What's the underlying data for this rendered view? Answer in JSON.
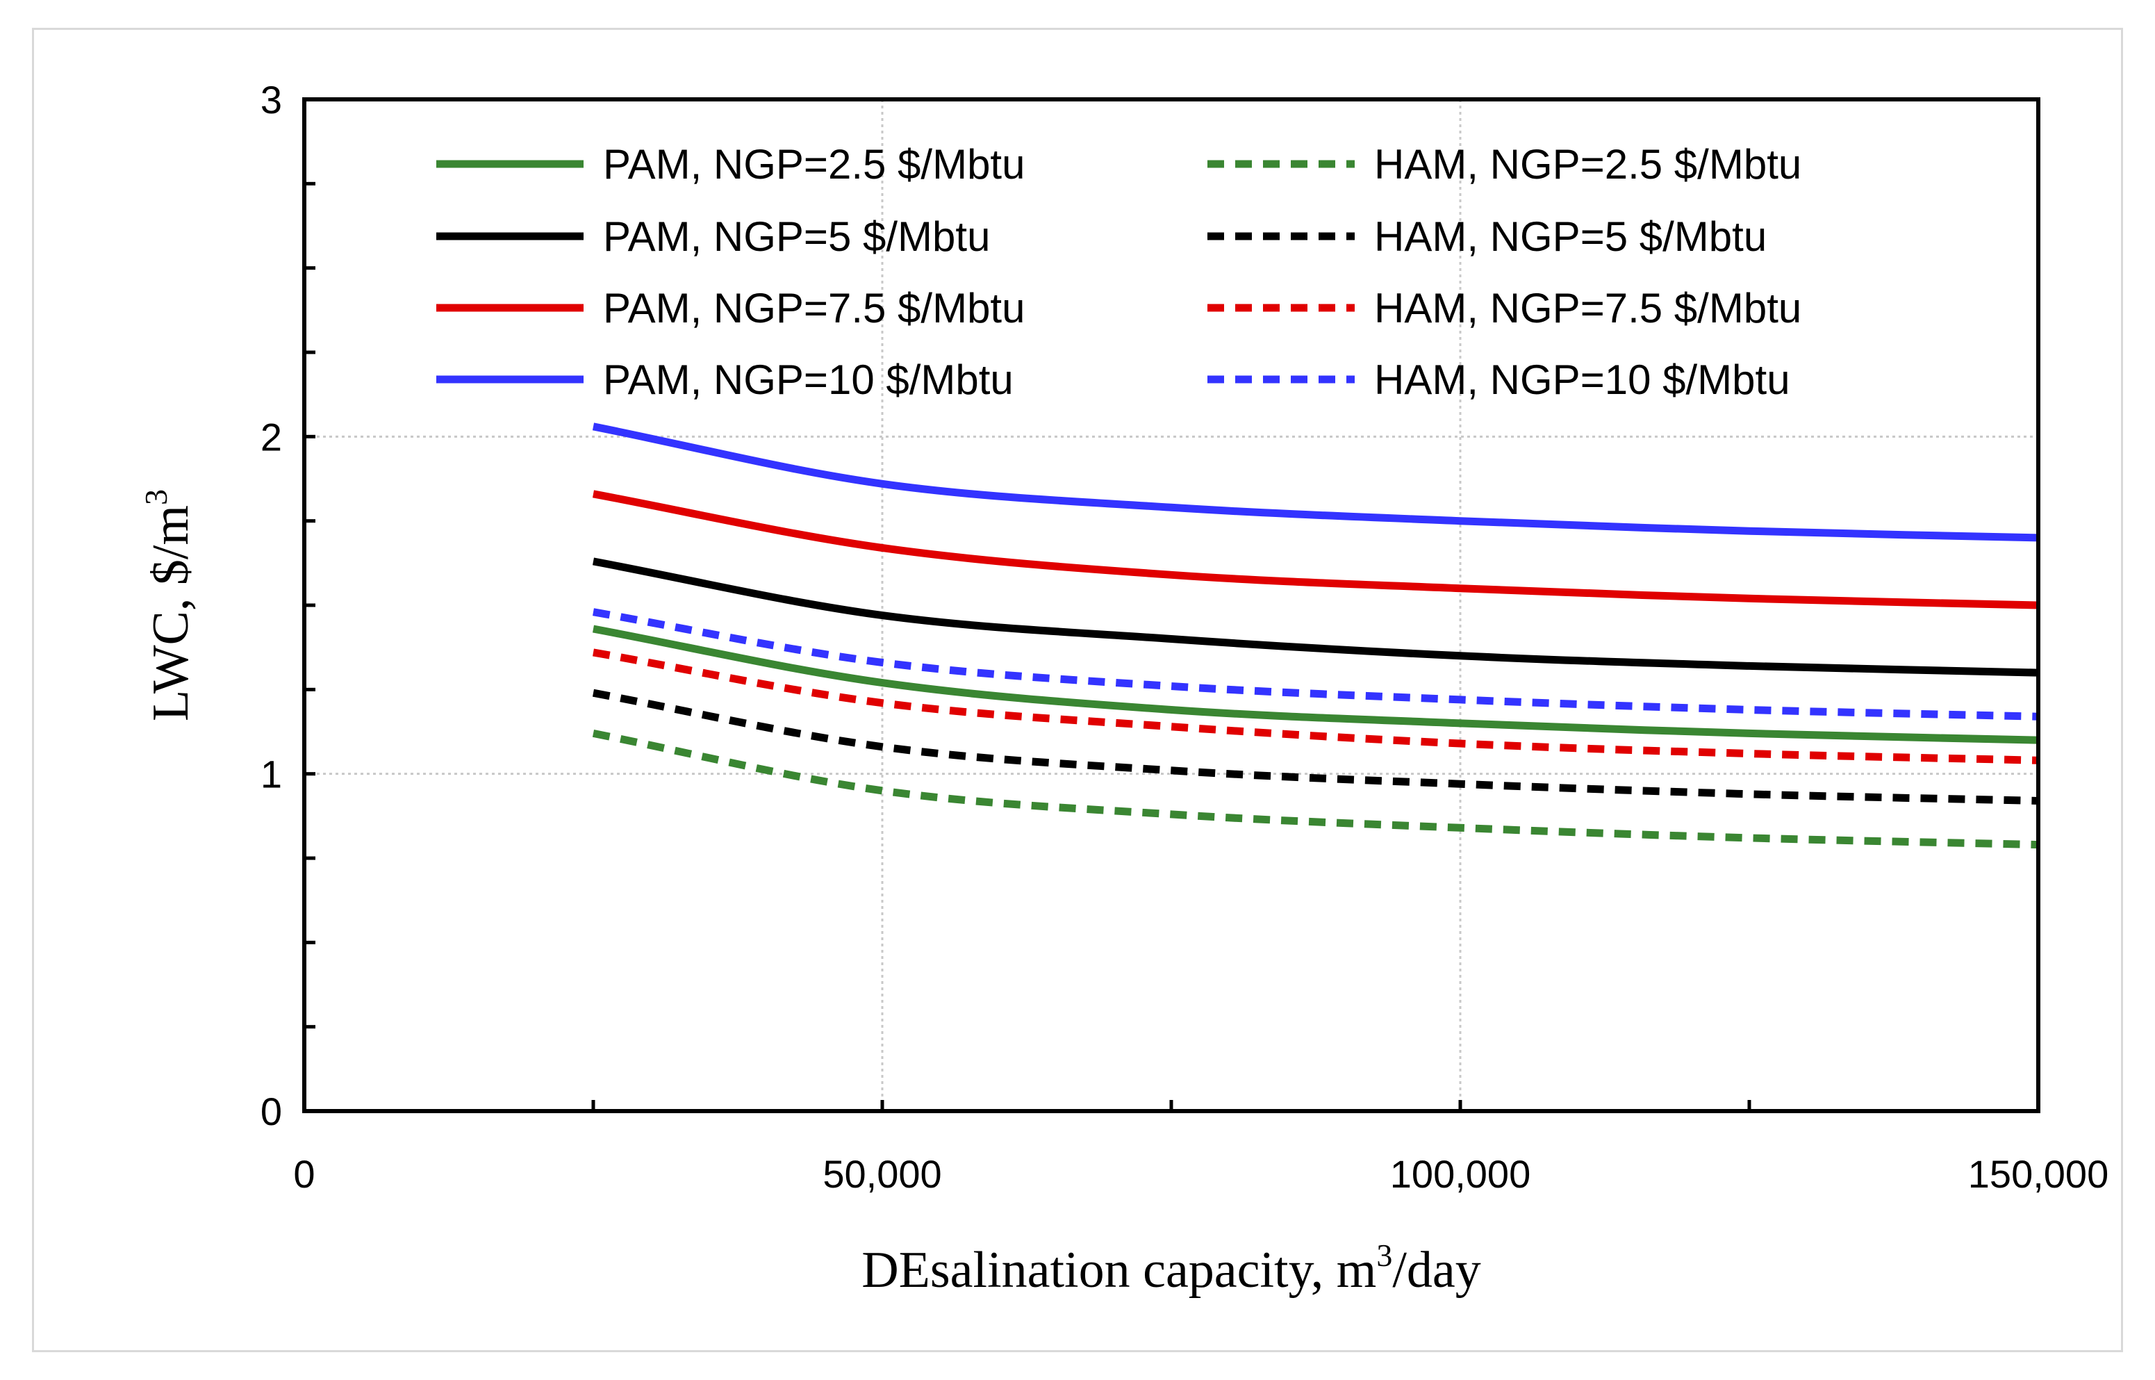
{
  "chart_data": {
    "type": "line",
    "title": "",
    "xlabel": "DEsalination capacity, m",
    "xlabel_sup": "3",
    "xlabel_suffix": "/day",
    "ylabel": "LWC, $/m",
    "ylabel_sup": "3",
    "xlim": [
      0,
      150000
    ],
    "ylim": [
      0,
      3
    ],
    "x_ticks": [
      0,
      50000,
      100000,
      150000
    ],
    "x_tick_labels": [
      "0",
      "50,000",
      "100,000",
      "150,000"
    ],
    "y_ticks": [
      0,
      1,
      2,
      3
    ],
    "y_tick_labels": [
      "0",
      "1",
      "2",
      "3"
    ],
    "grid": true,
    "legend_position": "top",
    "x": [
      25000,
      50000,
      75000,
      100000,
      125000,
      150000
    ],
    "series": [
      {
        "name": "PAM, NGP=2.5 $/Mbtu",
        "color": "#3a8632",
        "dash": "solid",
        "values": [
          1.43,
          1.27,
          1.19,
          1.15,
          1.12,
          1.1
        ]
      },
      {
        "name": "HAM, NGP=2.5 $/Mbtu",
        "color": "#3a8632",
        "dash": "dashed",
        "values": [
          1.12,
          0.95,
          0.88,
          0.84,
          0.81,
          0.79
        ]
      },
      {
        "name": "PAM, NGP=5 $/Mbtu",
        "color": "#000000",
        "dash": "solid",
        "values": [
          1.63,
          1.47,
          1.4,
          1.35,
          1.32,
          1.3
        ]
      },
      {
        "name": "HAM, NGP=5 $/Mbtu",
        "color": "#000000",
        "dash": "dashed",
        "values": [
          1.24,
          1.08,
          1.01,
          0.97,
          0.94,
          0.92
        ]
      },
      {
        "name": "PAM, NGP=7.5 $/Mbtu",
        "color": "#e00000",
        "dash": "solid",
        "values": [
          1.83,
          1.67,
          1.59,
          1.55,
          1.52,
          1.5
        ]
      },
      {
        "name": "HAM, NGP=7.5 $/Mbtu",
        "color": "#e00000",
        "dash": "dashed",
        "values": [
          1.36,
          1.21,
          1.14,
          1.09,
          1.06,
          1.04
        ]
      },
      {
        "name": "PAM, NGP=10 $/Mbtu",
        "color": "#3333ff",
        "dash": "solid",
        "values": [
          2.03,
          1.86,
          1.79,
          1.75,
          1.72,
          1.7
        ]
      },
      {
        "name": "HAM, NGP=10 $/Mbtu",
        "color": "#3333ff",
        "dash": "dashed",
        "values": [
          1.48,
          1.33,
          1.26,
          1.22,
          1.19,
          1.17
        ]
      }
    ]
  }
}
